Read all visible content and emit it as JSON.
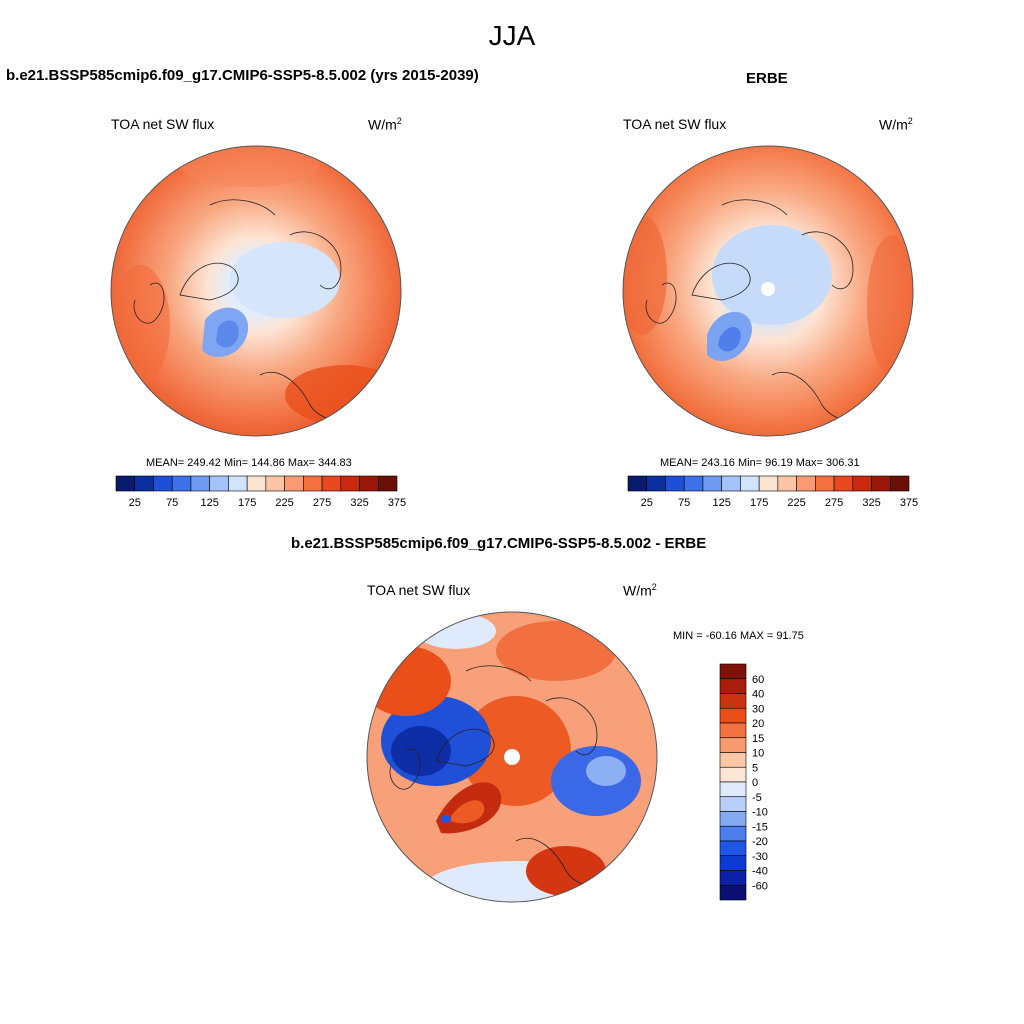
{
  "figure": {
    "season": "JJA"
  },
  "panels": [
    {
      "id": "model",
      "title": "b.e21.BSSP585cmip6.f09_g17.CMIP6-SSP5-8.5.002 (yrs 2015-2039)",
      "left_label": "TOA net SW flux",
      "units_base": "W/m",
      "units_exp": "2",
      "stats": "MEAN= 249.42  Min= 144.86  Max= 344.83"
    },
    {
      "id": "obs",
      "title": "ERBE",
      "left_label": "TOA net SW flux",
      "units_base": "W/m",
      "units_exp": "2",
      "stats": "MEAN= 243.16  Min=  96.19  Max= 306.31"
    },
    {
      "id": "diff",
      "title": "b.e21.BSSP585cmip6.f09_g17.CMIP6-SSP5-8.5.002 - ERBE",
      "left_label": "TOA net SW flux",
      "units_base": "W/m",
      "units_exp": "2",
      "stats": "MIN = -60.16 MAX =  91.75"
    }
  ],
  "colorbar_abs": {
    "colors": [
      "#0a1a6b",
      "#0c2ea3",
      "#1f4fd8",
      "#3f72ea",
      "#6f9af2",
      "#a3c2f7",
      "#d2e4fb",
      "#fde4d3",
      "#fbc4a6",
      "#f89a72",
      "#f4703f",
      "#e9481e",
      "#c92a0f",
      "#9a180a",
      "#6a0f06"
    ],
    "tick_labels": [
      "25",
      "75",
      "125",
      "175",
      "225",
      "275",
      "325",
      "375"
    ]
  },
  "colorbar_diff": {
    "colors": [
      "#0a0f72",
      "#0b1fa8",
      "#0d3ad0",
      "#1f56e6",
      "#4c7eee",
      "#86a9f3",
      "#b9cff8",
      "#dfeafc",
      "#fde6d6",
      "#fbc7a6",
      "#f89a70",
      "#f47240",
      "#ea4f1a",
      "#cc3310",
      "#a81e0a",
      "#7d1206"
    ],
    "tick_labels": [
      "60",
      "40",
      "30",
      "20",
      "15",
      "10",
      "5",
      "0",
      "-5",
      "-10",
      "-15",
      "-20",
      "-30",
      "-40",
      "-60"
    ]
  }
}
